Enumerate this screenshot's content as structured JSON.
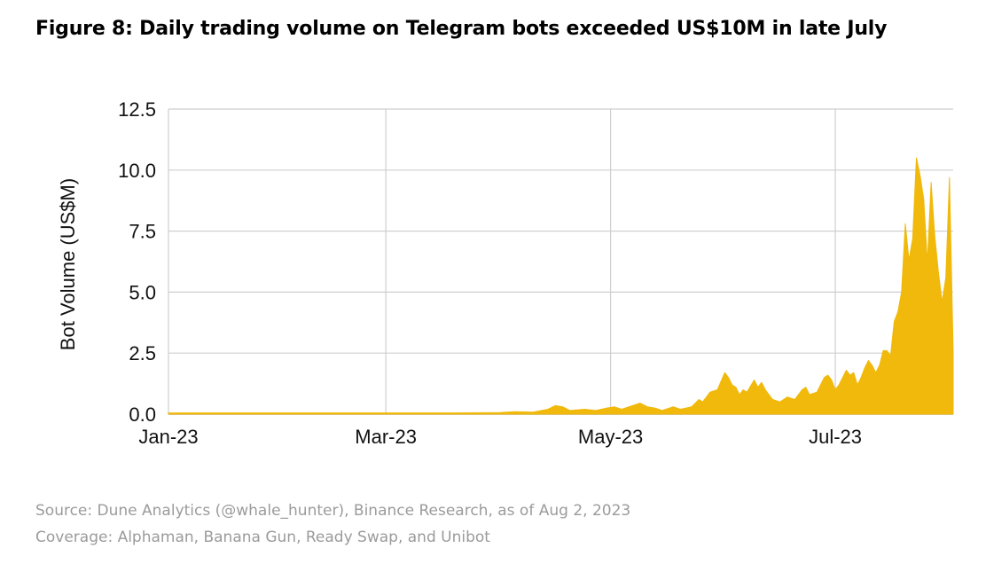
{
  "chart_data": {
    "type": "area",
    "title": "Figure 8: Daily trading volume on Telegram bots exceeded US$10M in late July",
    "ylabel": "Bot Volume (US$M)",
    "xlabel": "",
    "ylim": [
      0,
      12.5
    ],
    "xlim": [
      "2023-01-01",
      "2023-08-02"
    ],
    "y_ticks": [
      "0.0",
      "2.5",
      "5.0",
      "7.5",
      "10.0",
      "12.5"
    ],
    "x_ticks": [
      {
        "date": "2023-01-01",
        "label": "Jan-23"
      },
      {
        "date": "2023-03-01",
        "label": "Mar-23"
      },
      {
        "date": "2023-05-01",
        "label": "May-23"
      },
      {
        "date": "2023-07-01",
        "label": "Jul-23"
      }
    ],
    "grid": true,
    "color": "#F0B90B",
    "series": [
      {
        "points": [
          [
            "2023-01-01",
            0.05
          ],
          [
            "2023-02-01",
            0.05
          ],
          [
            "2023-03-01",
            0.05
          ],
          [
            "2023-03-20",
            0.05
          ],
          [
            "2023-04-01",
            0.06
          ],
          [
            "2023-04-05",
            0.1
          ],
          [
            "2023-04-10",
            0.08
          ],
          [
            "2023-04-14",
            0.2
          ],
          [
            "2023-04-16",
            0.35
          ],
          [
            "2023-04-18",
            0.3
          ],
          [
            "2023-04-20",
            0.15
          ],
          [
            "2023-04-24",
            0.2
          ],
          [
            "2023-04-27",
            0.15
          ],
          [
            "2023-04-30",
            0.25
          ],
          [
            "2023-05-02",
            0.3
          ],
          [
            "2023-05-04",
            0.2
          ],
          [
            "2023-05-07",
            0.35
          ],
          [
            "2023-05-09",
            0.45
          ],
          [
            "2023-05-11",
            0.3
          ],
          [
            "2023-05-13",
            0.25
          ],
          [
            "2023-05-15",
            0.15
          ],
          [
            "2023-05-18",
            0.3
          ],
          [
            "2023-05-20",
            0.2
          ],
          [
            "2023-05-23",
            0.3
          ],
          [
            "2023-05-25",
            0.6
          ],
          [
            "2023-05-26",
            0.5
          ],
          [
            "2023-05-28",
            0.9
          ],
          [
            "2023-05-30",
            1.0
          ],
          [
            "2023-06-01",
            1.7
          ],
          [
            "2023-06-02",
            1.5
          ],
          [
            "2023-06-03",
            1.2
          ],
          [
            "2023-06-04",
            1.1
          ],
          [
            "2023-06-05",
            0.8
          ],
          [
            "2023-06-06",
            1.0
          ],
          [
            "2023-06-07",
            0.9
          ],
          [
            "2023-06-09",
            1.4
          ],
          [
            "2023-06-10",
            1.1
          ],
          [
            "2023-06-11",
            1.3
          ],
          [
            "2023-06-12",
            1.0
          ],
          [
            "2023-06-14",
            0.6
          ],
          [
            "2023-06-16",
            0.5
          ],
          [
            "2023-06-18",
            0.7
          ],
          [
            "2023-06-20",
            0.6
          ],
          [
            "2023-06-22",
            1.0
          ],
          [
            "2023-06-23",
            1.1
          ],
          [
            "2023-06-24",
            0.8
          ],
          [
            "2023-06-26",
            0.9
          ],
          [
            "2023-06-28",
            1.5
          ],
          [
            "2023-06-29",
            1.6
          ],
          [
            "2023-06-30",
            1.4
          ],
          [
            "2023-07-01",
            1.0
          ],
          [
            "2023-07-02",
            1.2
          ],
          [
            "2023-07-04",
            1.8
          ],
          [
            "2023-07-05",
            1.6
          ],
          [
            "2023-07-06",
            1.7
          ],
          [
            "2023-07-07",
            1.2
          ],
          [
            "2023-07-08",
            1.5
          ],
          [
            "2023-07-09",
            1.9
          ],
          [
            "2023-07-10",
            2.2
          ],
          [
            "2023-07-11",
            2.0
          ],
          [
            "2023-07-12",
            1.7
          ],
          [
            "2023-07-13",
            2.0
          ],
          [
            "2023-07-14",
            2.6
          ],
          [
            "2023-07-15",
            2.6
          ],
          [
            "2023-07-16",
            2.4
          ],
          [
            "2023-07-17",
            3.8
          ],
          [
            "2023-07-18",
            4.2
          ],
          [
            "2023-07-19",
            5.0
          ],
          [
            "2023-07-20",
            7.8
          ],
          [
            "2023-07-21",
            6.3
          ],
          [
            "2023-07-22",
            7.2
          ],
          [
            "2023-07-23",
            10.5
          ],
          [
            "2023-07-24",
            9.8
          ],
          [
            "2023-07-25",
            8.8
          ],
          [
            "2023-07-26",
            6.2
          ],
          [
            "2023-07-27",
            9.5
          ],
          [
            "2023-07-28",
            7.3
          ],
          [
            "2023-07-29",
            5.8
          ],
          [
            "2023-07-30",
            4.6
          ],
          [
            "2023-07-31",
            5.6
          ],
          [
            "2023-08-01",
            9.7
          ],
          [
            "2023-08-02",
            2.5
          ]
        ]
      }
    ]
  },
  "footer": {
    "source": "Source: Dune Analytics (@whale_hunter), Binance Research, as of Aug 2, 2023",
    "coverage": "Coverage: Alphaman, Banana Gun, Ready Swap, and Unibot"
  }
}
